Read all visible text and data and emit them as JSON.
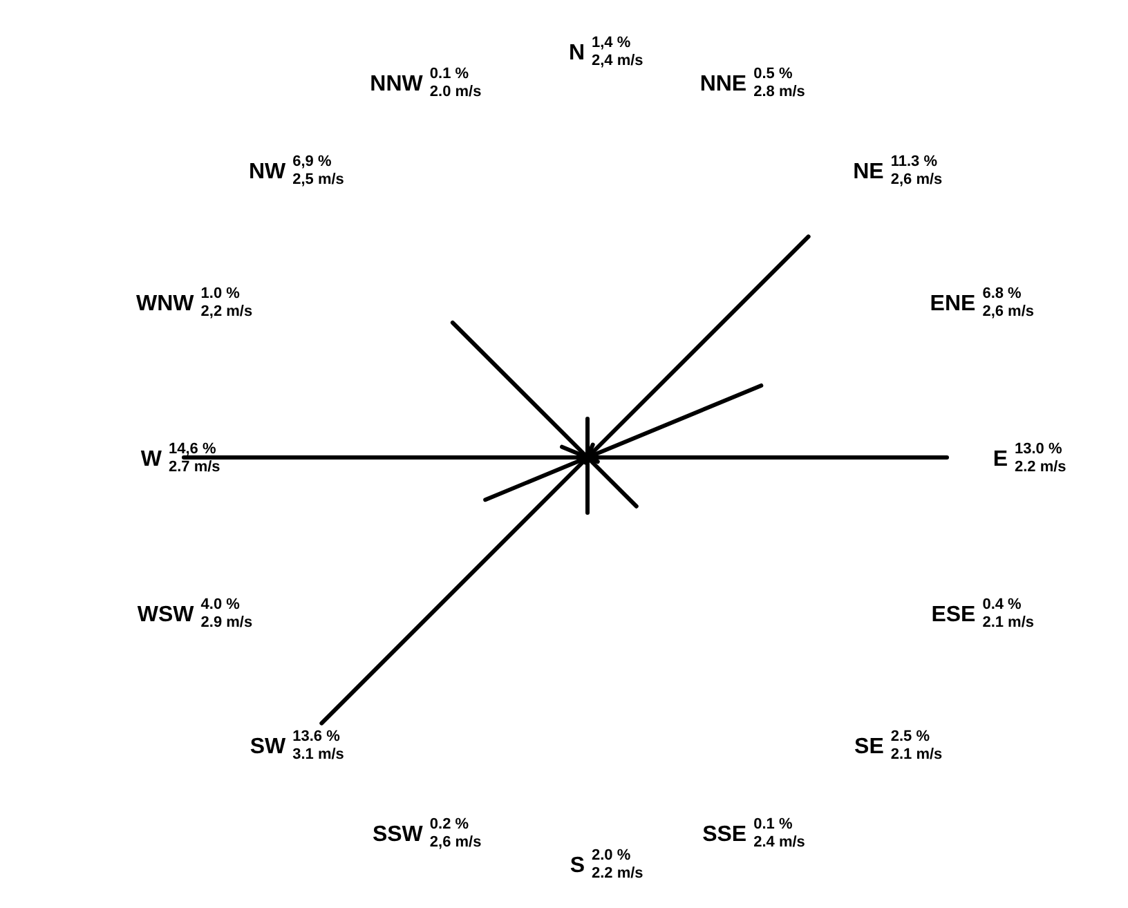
{
  "chart_data": {
    "type": "other",
    "categories": [
      "N",
      "NNE",
      "NE",
      "ENE",
      "E",
      "ESE",
      "SE",
      "SSE",
      "S",
      "SSW",
      "SW",
      "WSW",
      "W",
      "WNW",
      "NW",
      "NNW"
    ],
    "series": [
      {
        "color": "#000000",
        "values": [
          1.4,
          0.5,
          11.3,
          6.8,
          13.0,
          0.4,
          2.5,
          0.1,
          2.0,
          0.2,
          13.6,
          4.0,
          14.6,
          1.0,
          6.9,
          0.1
        ],
        "value_labels": [
          "1,4 %",
          "0.5 %",
          "11.3 %",
          "6.8 %",
          "13.0 %",
          "0.4 %",
          "2.5 %",
          "0.1 %",
          "2.0 %",
          "0.2 %",
          "13.6 %",
          "4.0 %",
          "14,6 %",
          "1.0 %",
          "6,9 %",
          "0.1 %"
        ]
      },
      {
        "values": [
          2.4,
          2.8,
          2.6,
          2.6,
          2.2,
          2.1,
          2.1,
          2.4,
          2.2,
          2.6,
          3.1,
          2.9,
          2.7,
          2.2,
          2.5,
          2.0
        ],
        "value_labels": [
          "2,4 m/s",
          "2.8 m/s",
          "2,6 m/s",
          "2,6 m/s",
          "2.2 m/s",
          "2.1 m/s",
          "2.1 m/s",
          "2.4 m/s",
          "2.2 m/s",
          "2,6 m/s",
          "3.1 m/s",
          "2.9 m/s",
          "2.7 m/s",
          "2,2 m/s",
          "2,5 m/s",
          "2.0 m/s"
        ]
      }
    ]
  }
}
